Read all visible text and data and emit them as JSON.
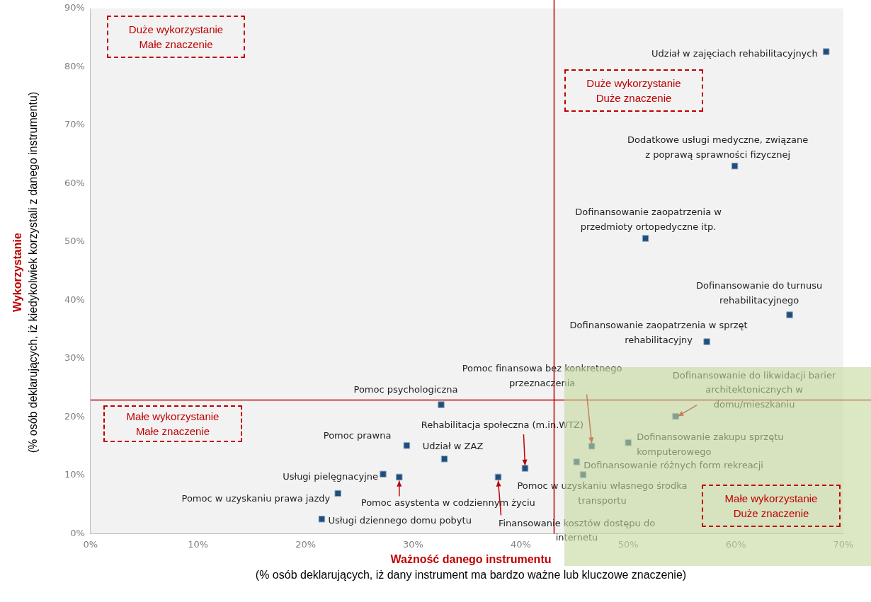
{
  "chart_data": {
    "type": "scatter",
    "xlabel": "Ważność danego instrumentu\n(% osób deklarujących, iż dany instrument ma bardzo ważne lub kluczowe znaczenie)",
    "ylabel": "Wykorzystanie\n(% osób deklarujących, iż kiedykolwiek korzystali z danego instrumentu)",
    "x": [
      68.4,
      59.9,
      51.6,
      65.0,
      57.3,
      32.6,
      54.4,
      46.6,
      50.0,
      29.4,
      32.9,
      45.2,
      45.8,
      40.4,
      27.2,
      28.7,
      37.9,
      23.0,
      21.5
    ],
    "series": [
      {
        "color": "#1f4e79",
        "values": [
          82.6,
          63.0,
          50.6,
          37.5,
          32.9,
          22.1,
          20.1,
          15.0,
          15.6,
          15.1,
          12.8,
          12.3,
          10.1,
          11.2,
          10.2,
          9.7,
          9.7,
          6.9,
          2.5
        ]
      }
    ],
    "marker": "square",
    "grid": false,
    "legend": false,
    "xlim": [
      0,
      70
    ],
    "xticks": [
      {
        "value": 0,
        "label": "0%"
      },
      {
        "value": 10,
        "label": "10%"
      },
      {
        "value": 20,
        "label": "20%"
      },
      {
        "value": 30,
        "label": "30%"
      },
      {
        "value": 40,
        "label": "40%"
      },
      {
        "value": 50,
        "label": "50%"
      },
      {
        "value": 60,
        "label": "60%"
      },
      {
        "value": 70,
        "label": "70%"
      }
    ],
    "ylim": [
      0,
      90
    ],
    "yticks": [
      {
        "value": 0,
        "label": "0%"
      },
      {
        "value": 10,
        "label": "10%"
      },
      {
        "value": 20,
        "label": "20%"
      },
      {
        "value": 30,
        "label": "30%"
      },
      {
        "value": 40,
        "label": "40%"
      },
      {
        "value": 50,
        "label": "50%"
      },
      {
        "value": 60,
        "label": "60%"
      },
      {
        "value": 70,
        "label": "70%"
      },
      {
        "value": 80,
        "label": "80%"
      },
      {
        "value": 90,
        "label": "90%"
      }
    ],
    "ref_lines": [
      {
        "axis": "x",
        "value": 43.1,
        "color": "#c00000"
      },
      {
        "axis": "y",
        "value": 22.9,
        "color": "#c00000"
      }
    ],
    "annotations": [
      {
        "text": "Udział w zajęciach rehabilitacyjnych",
        "x": 68.4,
        "y": 82.6
      },
      {
        "text": "Dodatkowe usługi medyczne, związane\nz poprawą sprawności fizycznej",
        "x": 59.9,
        "y": 63.0
      },
      {
        "text": "Dofinansowanie zaopatrzenia w\nprzedmioty ortopedyczne itp.",
        "x": 51.6,
        "y": 50.6
      },
      {
        "text": "Dofinansowanie do turnusu\nrehabilitacyjnego",
        "x": 65.0,
        "y": 37.5
      },
      {
        "text": "Dofinansowanie zaopatrzenia w sprzęt\nrehabilitacyjny",
        "x": 57.3,
        "y": 32.9
      },
      {
        "text": "Pomoc psychologiczna",
        "x": 32.6,
        "y": 22.1
      },
      {
        "text": "Dofinansowanie do likwidacji barier\narchitektonicznych w\ndomu/mieszkaniu",
        "x": 54.4,
        "y": 20.1
      },
      {
        "text": "Pomoc finansowa bez konkretnego\nprzeznaczenia",
        "x": 46.6,
        "y": 15.0
      },
      {
        "text": "Dofinansowanie zakupu sprzętu\nkomputerowego",
        "x": 50.0,
        "y": 15.6
      },
      {
        "text": "Pomoc prawna",
        "x": 29.4,
        "y": 15.1
      },
      {
        "text": "Udział w ZAZ",
        "x": 32.9,
        "y": 12.8
      },
      {
        "text": "Dofinansowanie różnych form rekreacji",
        "x": 45.2,
        "y": 12.3
      },
      {
        "text": "Pomoc w uzyskaniu własnego środka\ntransportu",
        "x": 45.8,
        "y": 10.1
      },
      {
        "text": "Rehabilitacja społeczna (m.in.WTZ)",
        "x": 40.4,
        "y": 11.2
      },
      {
        "text": "Usługi pielęgnacyjne",
        "x": 27.2,
        "y": 10.2
      },
      {
        "text": "Pomoc asystenta w codziennym życiu",
        "x": 28.7,
        "y": 9.7
      },
      {
        "text": "Finansowanie kosztów dostępu do\ninternetu",
        "x": 37.9,
        "y": 9.7
      },
      {
        "text": "Pomoc w uzyskaniu prawa jazdy",
        "x": 23.0,
        "y": 6.9
      },
      {
        "text": "Usługi dziennego domu pobytu",
        "x": 21.5,
        "y": 2.5
      },
      "Duże wykorzystanie\nMałe znaczenie",
      "Duże wykorzystanie\nDuże znaczenie",
      "Małe wykorzystanie\nMałe znaczenie",
      "Małe wykorzystanie\nDuże znaczenie"
    ]
  }
}
